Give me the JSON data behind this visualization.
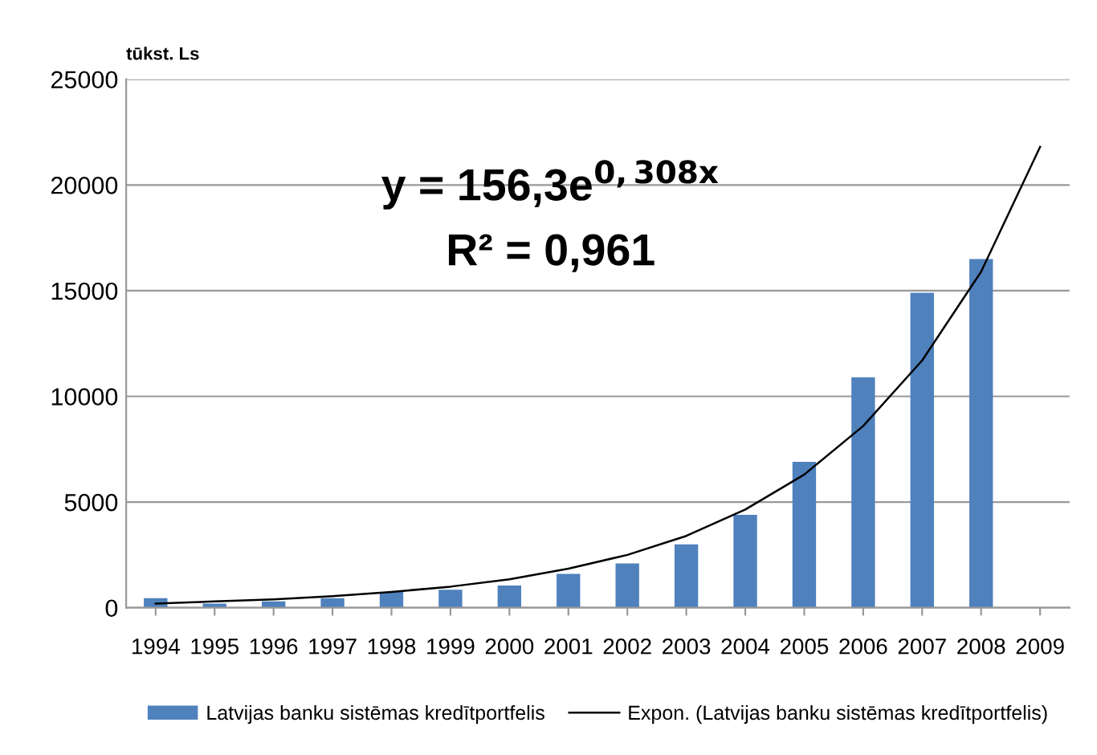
{
  "chart_data": {
    "type": "bar",
    "ylabel": "tūkst. Ls",
    "categories": [
      "1994",
      "1995",
      "1996",
      "1997",
      "1998",
      "1999",
      "2000",
      "2001",
      "2002",
      "2003",
      "2004",
      "2005",
      "2006",
      "2007",
      "2008",
      "2009"
    ],
    "series": [
      {
        "name": "Latvijas banku sistēmas kredītportfelis",
        "color": "#4f81bd",
        "values": [
          450,
          200,
          300,
          450,
          750,
          850,
          1050,
          1600,
          2100,
          3000,
          4400,
          6900,
          10900,
          14900,
          16500,
          null
        ]
      },
      {
        "name": "Expon. (Latvijas banku sistēmas kredītportfelis)",
        "type": "line",
        "color": "#000000",
        "line_style": "solid",
        "values": [
          200,
          300,
          400,
          550,
          750,
          1000,
          1350,
          1850,
          2500,
          3400,
          4650,
          6300,
          8600,
          11700,
          15900,
          21800
        ]
      }
    ],
    "ylim": [
      0,
      25000
    ],
    "yticks": [
      0,
      5000,
      10000,
      15000,
      20000,
      25000
    ],
    "grid": "y",
    "legend": "bottom",
    "marker": "none",
    "annotations": [
      "y = 156,3e$^{0,308x}$",
      "R² = 0,961"
    ]
  }
}
